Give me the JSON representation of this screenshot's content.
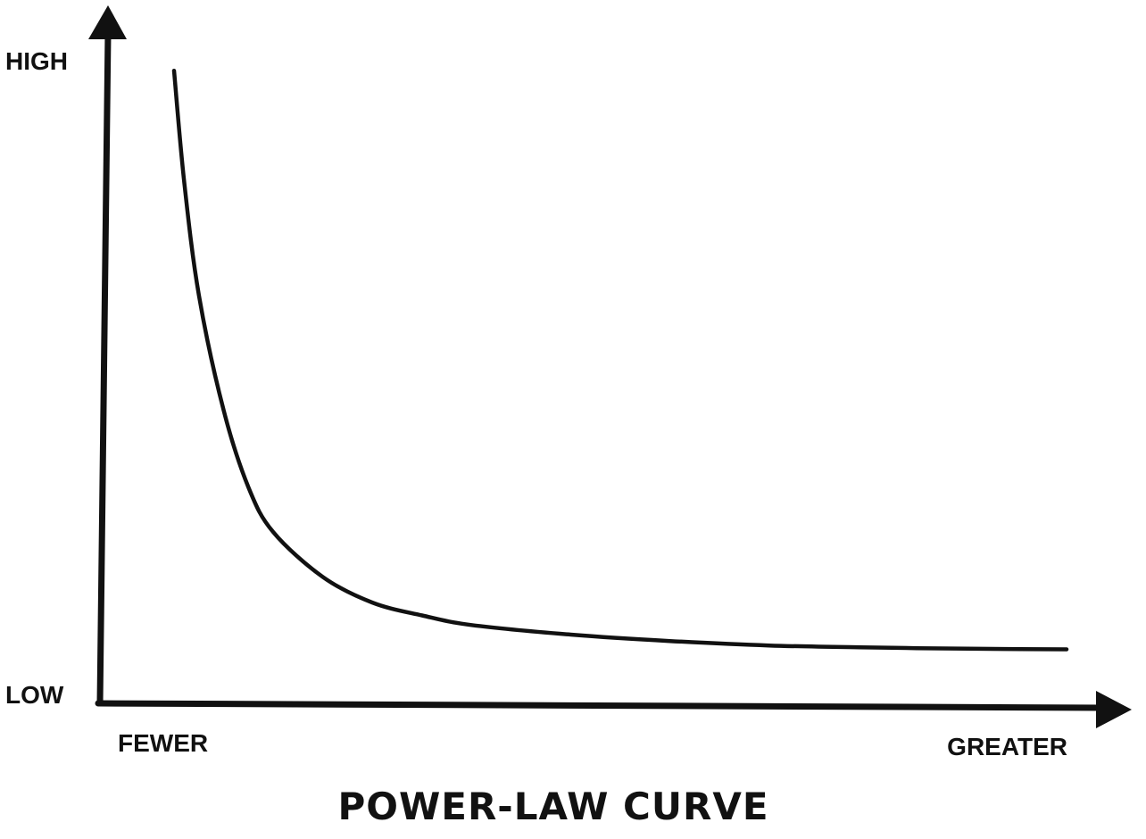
{
  "colors": {
    "ink": "#111111",
    "background": "#ffffff"
  },
  "chart_data": {
    "type": "line",
    "title": "POWER-LAW CURVE",
    "x_axis": {
      "start_label": "FEWER",
      "end_label": "GREATER",
      "numeric_ticks": false,
      "range": [
        1,
        10
      ]
    },
    "y_axis": {
      "top_label": "HIGH",
      "bottom_label": "LOW",
      "numeric_ticks": false,
      "range": [
        0,
        1
      ]
    },
    "grid": false,
    "legend": "none",
    "series": [
      {
        "x": [
          1.0,
          1.1,
          1.25,
          1.5,
          1.75,
          2.0,
          2.5,
          3.0,
          3.5,
          4.0,
          5.0,
          6.0,
          7.0,
          8.0,
          9.0,
          10.0
        ],
        "y": [
          0.99,
          0.82,
          0.64,
          0.46,
          0.34,
          0.27,
          0.2,
          0.16,
          0.14,
          0.125,
          0.11,
          0.1,
          0.093,
          0.09,
          0.088,
          0.087
        ]
      }
    ]
  }
}
